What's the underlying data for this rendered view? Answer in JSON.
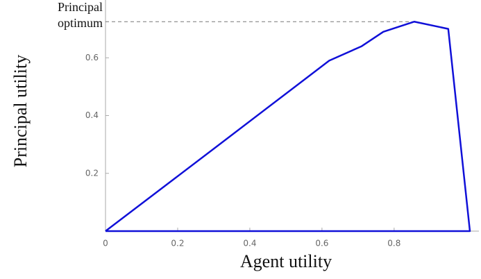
{
  "chart_data": {
    "type": "line",
    "xlabel": "Agent utility",
    "ylabel": "Principal utility",
    "annotation_lines": [
      "Principal",
      "optimum"
    ],
    "reference_y": 0.725,
    "xlim": [
      0,
      1.035
    ],
    "ylim": [
      0,
      0.8
    ],
    "xticks": [
      0,
      0.2,
      0.4,
      0.6,
      0.8
    ],
    "yticks": [
      0.2,
      0.4,
      0.6
    ],
    "series": [
      {
        "color": "#1010d8",
        "x": [
          0,
          0.3,
          0.62,
          0.71,
          0.77,
          0.856,
          0.95,
          1.01,
          0
        ],
        "values": [
          0,
          0.285,
          0.59,
          0.64,
          0.69,
          0.725,
          0.7,
          0,
          0
        ]
      }
    ]
  }
}
